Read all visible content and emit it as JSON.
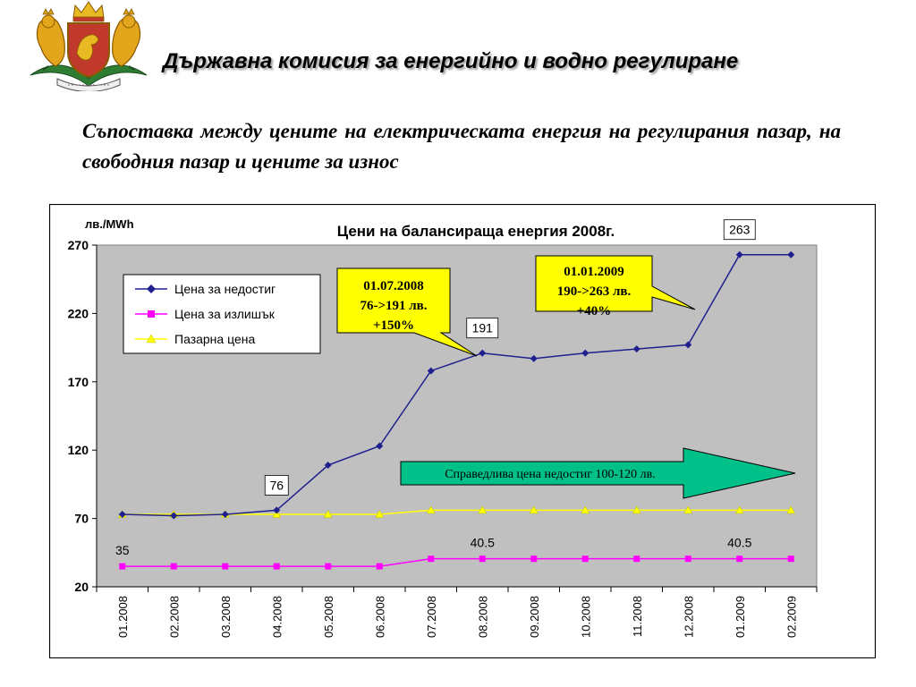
{
  "header": {
    "organization": "Държавна комисия за енергийно и водно регулиране",
    "subtitle": "Съпоставка между цените на електрическата енергия на регулирания пазар, на свободния пазар и цените за износ"
  },
  "colors": {
    "shortage": "#1f1f8f",
    "surplus": "#ff00ff",
    "market": "#ffff00",
    "plot_background": "#c0c0c0",
    "callout_fill": "#ffff00",
    "arrow_fill": "#00c08a"
  },
  "emblem": {
    "icon": "bulgarian-coat-of-arms"
  },
  "chart_data": {
    "type": "line",
    "title": "Цени на балансираща енергия 2008г.",
    "ylabel": "лв./MWh",
    "xlabel": "",
    "ylim": [
      20,
      270
    ],
    "yticks": [
      20,
      70,
      120,
      170,
      220,
      270
    ],
    "grid": false,
    "legend_position": "top-left",
    "categories": [
      "01.2008",
      "02.2008",
      "03.2008",
      "04.2008",
      "05.2008",
      "06.2008",
      "07.2008",
      "08.2008",
      "09.2008",
      "10.2008",
      "11.2008",
      "12.2008",
      "01.2009",
      "02.2009"
    ],
    "series": [
      {
        "name": "Цена за недостиг",
        "marker": "diamond",
        "color": "#1f1f8f",
        "values": [
          73,
          72,
          73,
          76,
          109,
          123,
          178,
          191,
          187,
          191,
          194,
          197,
          263,
          263
        ]
      },
      {
        "name": "Цена за излишък",
        "marker": "square",
        "color": "#ff00ff",
        "values": [
          35,
          35,
          35,
          35,
          35,
          35,
          40.5,
          40.5,
          40.5,
          40.5,
          40.5,
          40.5,
          40.5,
          40.5
        ]
      },
      {
        "name": "Пазарна цена",
        "marker": "triangle",
        "color": "#ffff00",
        "values": [
          73,
          73,
          73,
          73,
          73,
          73,
          76,
          76,
          76,
          76,
          76,
          76,
          76,
          76
        ]
      }
    ],
    "data_labels": [
      {
        "series": 0,
        "index": 3,
        "text": "76"
      },
      {
        "series": 0,
        "index": 7,
        "text": "191"
      },
      {
        "series": 0,
        "index": 12,
        "text": "263"
      },
      {
        "series": 1,
        "index": 0,
        "text": "35"
      },
      {
        "series": 1,
        "index": 7,
        "text": "40.5"
      },
      {
        "series": 1,
        "index": 12,
        "text": "40.5"
      }
    ],
    "annotations": [
      {
        "lines": [
          "01.07.2008",
          "76->191 лв.",
          "+150%"
        ],
        "points_to": {
          "series": 0,
          "index": 7
        }
      },
      {
        "lines": [
          "01.01.2009",
          "190->263 лв.",
          "+40%"
        ],
        "points_to": {
          "series": 0,
          "index": 11
        }
      }
    ],
    "arrow_annotation": {
      "text": "Справедлива цена недостиг 100-120 лв."
    }
  }
}
